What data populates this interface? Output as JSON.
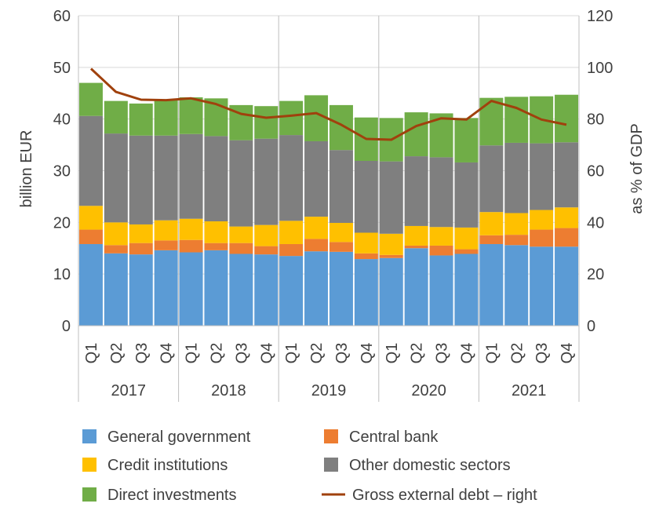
{
  "chart_data": {
    "type": "bar",
    "stacked": true,
    "quarters": [
      "Q1",
      "Q2",
      "Q3",
      "Q4",
      "Q1",
      "Q2",
      "Q3",
      "Q4",
      "Q1",
      "Q2",
      "Q3",
      "Q4",
      "Q1",
      "Q2",
      "Q3",
      "Q4",
      "Q1",
      "Q2",
      "Q3",
      "Q4"
    ],
    "years": [
      "2017",
      "2018",
      "2019",
      "2020",
      "2021"
    ],
    "ylabel": "billion EUR",
    "y2label": "as % of GDP",
    "ylim": [
      0,
      60
    ],
    "y2lim": [
      0,
      120
    ],
    "yticks": [
      "0",
      "10",
      "20",
      "30",
      "40",
      "50",
      "60"
    ],
    "y2ticks": [
      "0",
      "20",
      "40",
      "60",
      "80",
      "100",
      "120"
    ],
    "series": [
      {
        "name": "General government",
        "color": "#5b9bd5",
        "values": [
          15.8,
          14.0,
          13.8,
          14.6,
          14.2,
          14.6,
          13.9,
          13.8,
          13.5,
          14.4,
          14.3,
          12.9,
          13.1,
          15.0,
          13.6,
          13.9,
          15.8,
          15.6,
          15.3,
          15.3
        ]
      },
      {
        "name": "Central bank",
        "color": "#ed7d31",
        "values": [
          2.8,
          1.6,
          2.2,
          1.9,
          2.4,
          1.4,
          2.1,
          1.6,
          2.3,
          2.4,
          1.9,
          1.1,
          0.6,
          0.5,
          1.9,
          0.9,
          1.7,
          2.0,
          3.3,
          3.6
        ]
      },
      {
        "name": "Credit institutions",
        "color": "#ffc000",
        "values": [
          4.6,
          4.4,
          3.6,
          3.9,
          4.1,
          4.2,
          3.2,
          4.1,
          4.5,
          4.3,
          3.7,
          4.0,
          4.1,
          3.8,
          3.6,
          4.2,
          4.5,
          4.2,
          3.8,
          4.0
        ]
      },
      {
        "name": "Other domestic sectors",
        "color": "#7f7f7f",
        "values": [
          17.4,
          17.2,
          17.2,
          16.4,
          16.4,
          16.5,
          16.7,
          16.7,
          16.6,
          14.6,
          14.1,
          13.9,
          14.0,
          13.5,
          13.5,
          12.6,
          12.9,
          13.6,
          12.9,
          12.6
        ]
      },
      {
        "name": "Direct investments",
        "color": "#70ad47",
        "values": [
          6.4,
          6.3,
          6.2,
          7.0,
          7.1,
          7.3,
          6.8,
          6.3,
          6.6,
          8.9,
          8.7,
          8.4,
          8.4,
          8.5,
          8.5,
          8.6,
          9.2,
          8.9,
          9.1,
          9.2
        ]
      }
    ],
    "line": {
      "name": "Gross external debt – right",
      "color": "#a0410d",
      "axis": "right",
      "values": [
        99.5,
        90.5,
        87.5,
        87.3,
        88.0,
        85.8,
        82.0,
        80.5,
        81.3,
        82.3,
        77.8,
        72.3,
        72.0,
        77.3,
        80.3,
        79.8,
        87.0,
        84.3,
        79.8,
        77.8
      ]
    },
    "legend": [
      {
        "label": "General government",
        "kind": "box",
        "color": "#5b9bd5"
      },
      {
        "label": "Central bank",
        "kind": "box",
        "color": "#ed7d31"
      },
      {
        "label": "Credit institutions",
        "kind": "box",
        "color": "#ffc000"
      },
      {
        "label": "Other domestic sectors",
        "kind": "box",
        "color": "#7f7f7f"
      },
      {
        "label": "Direct investments",
        "kind": "box",
        "color": "#70ad47"
      },
      {
        "label": "Gross external debt – right",
        "kind": "line",
        "color": "#a0410d"
      }
    ]
  }
}
